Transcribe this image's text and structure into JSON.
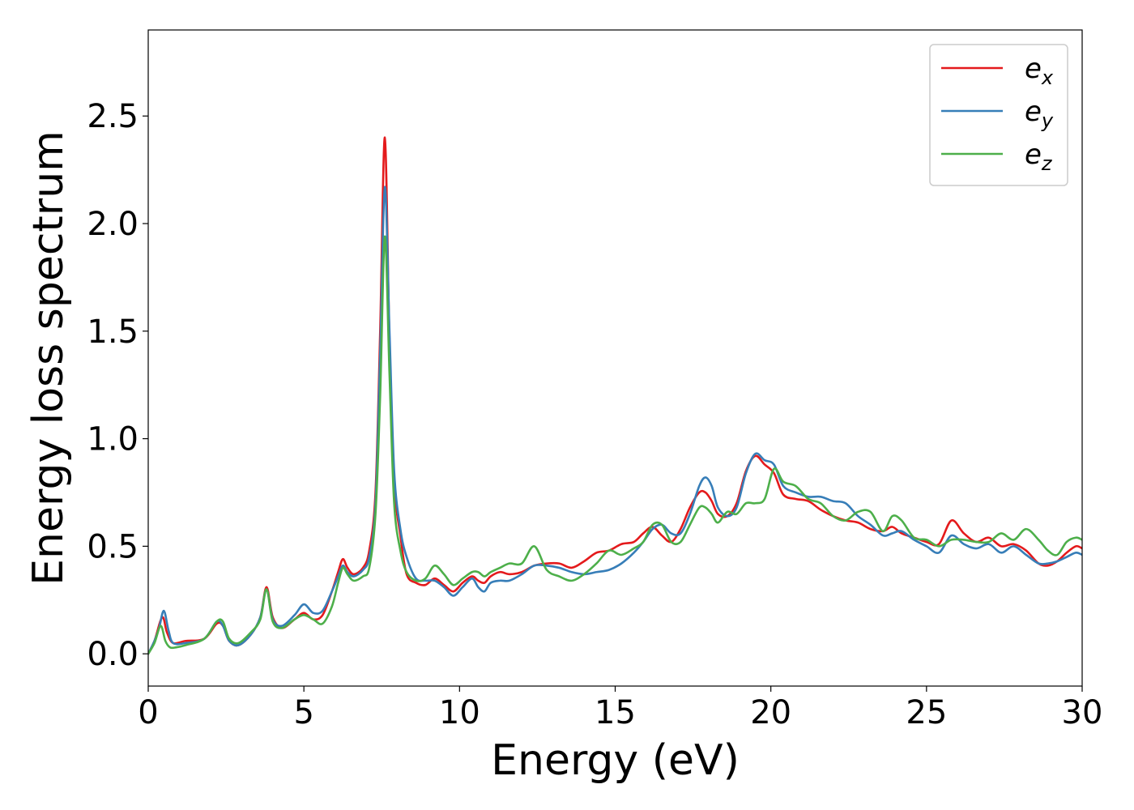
{
  "chart_data": {
    "type": "line",
    "title": "",
    "xlabel": "Energy (eV)",
    "ylabel": "Energy loss spectrum",
    "xlim": [
      0,
      30
    ],
    "ylim": [
      -0.15,
      2.9
    ],
    "xticks": [
      0,
      5,
      10,
      15,
      20,
      25,
      30
    ],
    "xtick_labels": [
      "0",
      "5",
      "10",
      "15",
      "20",
      "25",
      "30"
    ],
    "yticks": [
      0.0,
      0.5,
      1.0,
      1.5,
      2.0,
      2.5
    ],
    "ytick_labels": [
      "0.0",
      "0.5",
      "1.0",
      "1.5",
      "2.0",
      "2.5"
    ],
    "grid": false,
    "legend_position": "top-right",
    "series": [
      {
        "name": "e",
        "subscript": "x",
        "color": "#e41a1c",
        "x": [
          0,
          0.2,
          0.45,
          0.6,
          0.8,
          1.2,
          1.8,
          2.2,
          2.4,
          2.6,
          2.9,
          3.3,
          3.6,
          3.8,
          4.0,
          4.3,
          4.7,
          5.0,
          5.3,
          5.6,
          5.9,
          6.1,
          6.25,
          6.4,
          6.6,
          6.9,
          7.1,
          7.3,
          7.45,
          7.6,
          7.75,
          7.9,
          8.1,
          8.3,
          8.6,
          8.9,
          9.2,
          9.5,
          9.8,
          10.1,
          10.4,
          10.6,
          10.8,
          11.0,
          11.3,
          11.6,
          12.0,
          12.4,
          12.8,
          13.2,
          13.6,
          14.0,
          14.4,
          14.8,
          15.2,
          15.6,
          15.9,
          16.2,
          16.5,
          16.8,
          17.1,
          17.4,
          17.7,
          17.9,
          18.1,
          18.3,
          18.6,
          18.9,
          19.2,
          19.5,
          19.8,
          20.1,
          20.4,
          20.8,
          21.2,
          21.6,
          22.0,
          22.4,
          22.8,
          23.2,
          23.6,
          23.9,
          24.2,
          24.6,
          25.0,
          25.4,
          25.8,
          26.2,
          26.6,
          27.0,
          27.4,
          27.8,
          28.2,
          28.6,
          28.9,
          29.2,
          29.5,
          29.8,
          30
        ],
        "y": [
          0.0,
          0.06,
          0.17,
          0.1,
          0.05,
          0.06,
          0.07,
          0.14,
          0.13,
          0.06,
          0.04,
          0.09,
          0.17,
          0.31,
          0.17,
          0.12,
          0.16,
          0.19,
          0.16,
          0.18,
          0.29,
          0.38,
          0.44,
          0.4,
          0.37,
          0.4,
          0.48,
          0.75,
          1.5,
          2.4,
          1.45,
          0.8,
          0.55,
          0.37,
          0.33,
          0.32,
          0.35,
          0.32,
          0.29,
          0.33,
          0.36,
          0.34,
          0.33,
          0.36,
          0.38,
          0.37,
          0.38,
          0.41,
          0.42,
          0.42,
          0.4,
          0.43,
          0.47,
          0.48,
          0.51,
          0.52,
          0.56,
          0.59,
          0.55,
          0.52,
          0.58,
          0.68,
          0.75,
          0.75,
          0.71,
          0.65,
          0.64,
          0.7,
          0.85,
          0.92,
          0.88,
          0.84,
          0.74,
          0.72,
          0.71,
          0.67,
          0.64,
          0.62,
          0.61,
          0.58,
          0.57,
          0.59,
          0.56,
          0.54,
          0.52,
          0.51,
          0.62,
          0.56,
          0.52,
          0.54,
          0.5,
          0.51,
          0.48,
          0.42,
          0.41,
          0.43,
          0.47,
          0.5,
          0.49
        ]
      },
      {
        "name": "e",
        "subscript": "y",
        "color": "#377eb8",
        "x": [
          0,
          0.2,
          0.35,
          0.5,
          0.65,
          0.8,
          1.2,
          1.8,
          2.2,
          2.4,
          2.6,
          2.9,
          3.3,
          3.6,
          3.8,
          4.0,
          4.3,
          4.7,
          5.0,
          5.3,
          5.6,
          5.9,
          6.1,
          6.25,
          6.4,
          6.6,
          6.9,
          7.1,
          7.3,
          7.45,
          7.6,
          7.75,
          7.9,
          8.1,
          8.3,
          8.6,
          8.9,
          9.2,
          9.5,
          9.8,
          10.1,
          10.4,
          10.6,
          10.8,
          11.0,
          11.3,
          11.6,
          12.0,
          12.4,
          12.8,
          13.2,
          13.6,
          14.0,
          14.4,
          14.8,
          15.2,
          15.6,
          15.9,
          16.2,
          16.5,
          16.8,
          17.1,
          17.4,
          17.7,
          17.9,
          18.1,
          18.3,
          18.6,
          18.9,
          19.2,
          19.5,
          19.8,
          20.1,
          20.4,
          20.8,
          21.2,
          21.6,
          22.0,
          22.4,
          22.8,
          23.2,
          23.6,
          23.9,
          24.2,
          24.6,
          25.0,
          25.4,
          25.8,
          26.2,
          26.6,
          27.0,
          27.4,
          27.8,
          28.2,
          28.6,
          28.9,
          29.2,
          29.5,
          29.8,
          30
        ],
        "y": [
          0.0,
          0.06,
          0.12,
          0.2,
          0.11,
          0.05,
          0.05,
          0.07,
          0.15,
          0.13,
          0.06,
          0.04,
          0.09,
          0.17,
          0.3,
          0.16,
          0.13,
          0.18,
          0.23,
          0.19,
          0.2,
          0.29,
          0.36,
          0.41,
          0.38,
          0.36,
          0.39,
          0.45,
          0.7,
          1.4,
          2.17,
          1.5,
          0.85,
          0.58,
          0.45,
          0.35,
          0.34,
          0.34,
          0.31,
          0.27,
          0.31,
          0.35,
          0.31,
          0.29,
          0.33,
          0.34,
          0.34,
          0.37,
          0.41,
          0.41,
          0.4,
          0.38,
          0.37,
          0.38,
          0.39,
          0.42,
          0.47,
          0.52,
          0.58,
          0.6,
          0.56,
          0.56,
          0.65,
          0.78,
          0.82,
          0.78,
          0.68,
          0.64,
          0.68,
          0.84,
          0.93,
          0.9,
          0.88,
          0.78,
          0.75,
          0.73,
          0.73,
          0.71,
          0.7,
          0.64,
          0.6,
          0.55,
          0.56,
          0.57,
          0.53,
          0.5,
          0.47,
          0.55,
          0.51,
          0.49,
          0.51,
          0.47,
          0.5,
          0.46,
          0.42,
          0.42,
          0.43,
          0.45,
          0.47,
          0.46
        ]
      },
      {
        "name": "e",
        "subscript": "z",
        "color": "#4daf4a",
        "x": [
          0,
          0.2,
          0.4,
          0.55,
          0.7,
          0.9,
          1.2,
          1.8,
          2.2,
          2.4,
          2.6,
          2.9,
          3.3,
          3.6,
          3.8,
          4.0,
          4.3,
          4.7,
          5.0,
          5.3,
          5.6,
          5.9,
          6.1,
          6.25,
          6.4,
          6.6,
          6.9,
          7.1,
          7.3,
          7.45,
          7.6,
          7.75,
          7.9,
          8.1,
          8.3,
          8.6,
          8.9,
          9.2,
          9.5,
          9.8,
          10.1,
          10.4,
          10.6,
          10.8,
          11.0,
          11.3,
          11.6,
          12.0,
          12.4,
          12.8,
          13.2,
          13.6,
          14.0,
          14.4,
          14.8,
          15.2,
          15.6,
          15.9,
          16.2,
          16.5,
          16.8,
          17.1,
          17.4,
          17.7,
          17.9,
          18.1,
          18.3,
          18.6,
          18.9,
          19.2,
          19.5,
          19.8,
          20.1,
          20.4,
          20.8,
          21.2,
          21.6,
          22.0,
          22.4,
          22.8,
          23.2,
          23.6,
          23.9,
          24.2,
          24.6,
          25.0,
          25.4,
          25.8,
          26.2,
          26.6,
          27.0,
          27.4,
          27.8,
          28.2,
          28.6,
          28.9,
          29.2,
          29.5,
          29.8,
          30
        ],
        "y": [
          0.0,
          0.05,
          0.13,
          0.06,
          0.03,
          0.03,
          0.04,
          0.07,
          0.15,
          0.15,
          0.07,
          0.05,
          0.1,
          0.16,
          0.3,
          0.15,
          0.12,
          0.16,
          0.18,
          0.16,
          0.14,
          0.22,
          0.33,
          0.4,
          0.37,
          0.34,
          0.36,
          0.4,
          0.65,
          1.2,
          1.94,
          1.3,
          0.7,
          0.48,
          0.38,
          0.34,
          0.35,
          0.41,
          0.37,
          0.32,
          0.35,
          0.38,
          0.38,
          0.36,
          0.38,
          0.4,
          0.42,
          0.42,
          0.5,
          0.39,
          0.36,
          0.34,
          0.37,
          0.42,
          0.48,
          0.46,
          0.49,
          0.52,
          0.6,
          0.6,
          0.52,
          0.52,
          0.6,
          0.68,
          0.68,
          0.65,
          0.61,
          0.66,
          0.65,
          0.7,
          0.7,
          0.72,
          0.86,
          0.8,
          0.78,
          0.72,
          0.7,
          0.64,
          0.62,
          0.66,
          0.66,
          0.57,
          0.64,
          0.62,
          0.54,
          0.53,
          0.5,
          0.53,
          0.53,
          0.52,
          0.52,
          0.56,
          0.53,
          0.58,
          0.53,
          0.48,
          0.46,
          0.52,
          0.54,
          0.53
        ]
      }
    ]
  }
}
